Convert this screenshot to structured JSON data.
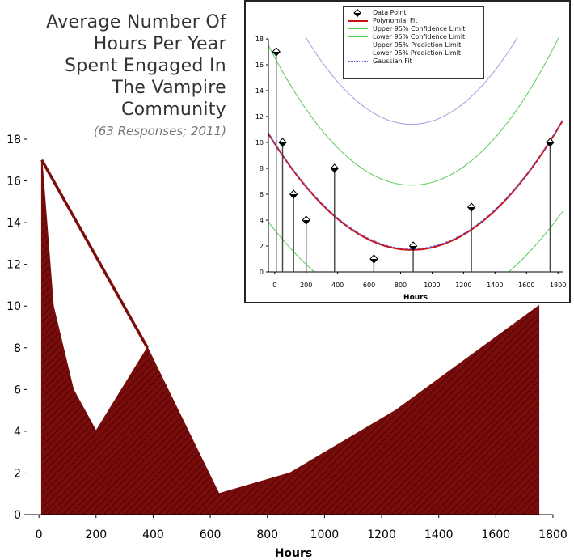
{
  "title": {
    "lines": [
      "Average Number Of",
      "Hours Per Year",
      "Spent Engaged In",
      "The Vampire",
      "Community"
    ],
    "subtitle": "(63 Responses; 2011)"
  },
  "colors": {
    "area_fill": "#7a0c0c",
    "hatch": "#3a0404",
    "polynomial": "#cc1111",
    "confidence": "#55cc55",
    "prediction_upper": "#9d9de0",
    "prediction_lower": "#222266",
    "gaussian": "#6666dd"
  },
  "chart_data": [
    {
      "type": "area",
      "xlabel": "Hours",
      "ylabel": "",
      "xlim": [
        -40,
        1800
      ],
      "ylim": [
        0,
        18
      ],
      "xticks": [
        0,
        200,
        400,
        600,
        800,
        1000,
        1200,
        1400,
        1600,
        1800
      ],
      "yticks": [
        0,
        2,
        4,
        6,
        8,
        10,
        12,
        14,
        16,
        18
      ],
      "series": [
        {
          "x": [
            10,
            50,
            120,
            200,
            380,
            630,
            880,
            1250,
            1750
          ],
          "y": [
            17,
            10,
            6,
            4,
            8,
            1,
            2,
            5,
            10
          ]
        }
      ],
      "line": {
        "x": [
          10,
          380
        ],
        "y": [
          17,
          8
        ]
      }
    },
    {
      "type": "scatter",
      "xlabel": "Hours",
      "ylabel": "",
      "xlim": [
        -40,
        1830
      ],
      "ylim": [
        0,
        18
      ],
      "xticks": [
        0,
        200,
        400,
        600,
        800,
        1000,
        1200,
        1400,
        1600,
        1800
      ],
      "yticks": [
        0,
        2,
        4,
        6,
        8,
        10,
        12,
        14,
        16,
        18
      ],
      "points": {
        "x": [
          10,
          50,
          120,
          200,
          380,
          630,
          880,
          1250,
          1750
        ],
        "y": [
          17,
          10,
          6,
          4,
          8,
          1,
          2,
          5,
          10
        ]
      },
      "legend": [
        "Data Point",
        "Polynomial Fit",
        "Upper 95% Confidence Limit",
        "Lower 95% Confidence Limit",
        "Upper 95% Prediction Limit",
        "Lower 95% Prediction Limit",
        "Gaussian Fit"
      ],
      "legend_position": "top"
    }
  ]
}
